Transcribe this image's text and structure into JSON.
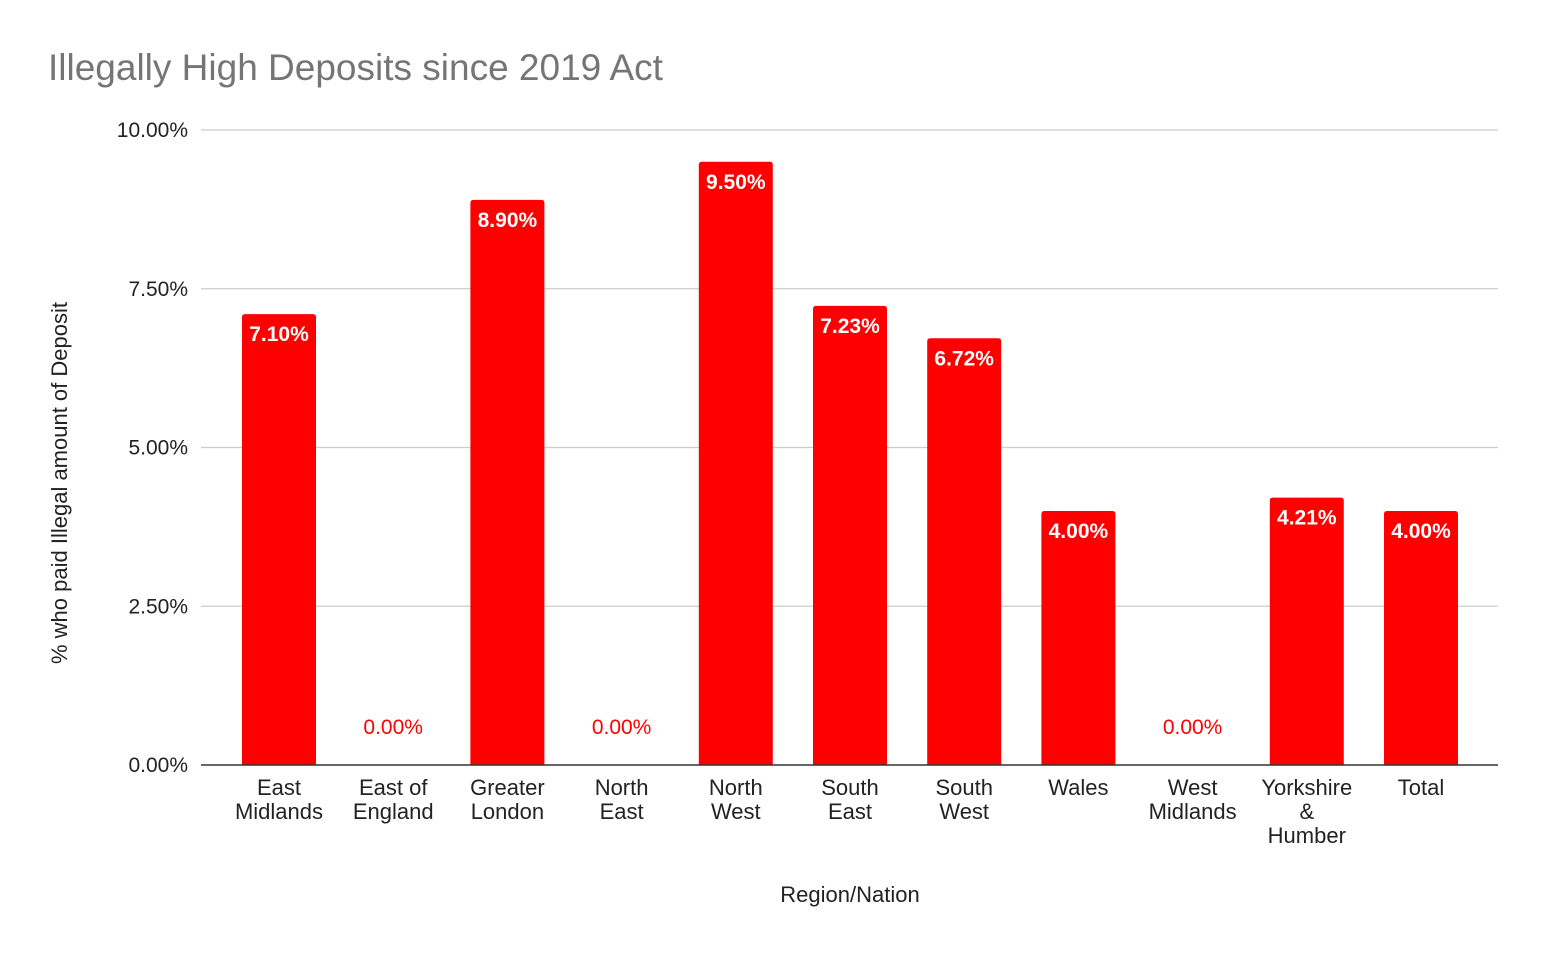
{
  "chart_data": {
    "type": "bar",
    "title": "Illegally High Deposits since 2019 Act",
    "xlabel": "Region/Nation",
    "ylabel": "% who paid Illegal amount of Deposit",
    "categories": [
      [
        "East",
        "Midlands"
      ],
      [
        "East of",
        "England"
      ],
      [
        "Greater",
        "London"
      ],
      [
        "North",
        "East"
      ],
      [
        "North",
        "West"
      ],
      [
        "South",
        "East"
      ],
      [
        "South",
        "West"
      ],
      [
        "Wales"
      ],
      [
        "West",
        "Midlands"
      ],
      [
        "Yorkshire",
        "&",
        "Humber"
      ],
      [
        "Total"
      ]
    ],
    "values": [
      7.1,
      0.0,
      8.9,
      0.0,
      9.5,
      7.23,
      6.72,
      4.0,
      0.0,
      4.21,
      4.0
    ],
    "data_labels": [
      "7.10%",
      "0.00%",
      "8.90%",
      "0.00%",
      "9.50%",
      "7.23%",
      "6.72%",
      "4.00%",
      "0.00%",
      "4.21%",
      "4.00%"
    ],
    "ylim": [
      0,
      10
    ],
    "yticks": [
      0,
      2.5,
      5,
      7.5,
      10
    ],
    "ytick_labels": [
      "0.00%",
      "2.50%",
      "5.00%",
      "7.50%",
      "10.00%"
    ],
    "grid": true,
    "legend": "none",
    "colors": {
      "bar": "#ff0000",
      "grid": "#cccccc",
      "axis": "#333333",
      "title": "#757575"
    }
  }
}
